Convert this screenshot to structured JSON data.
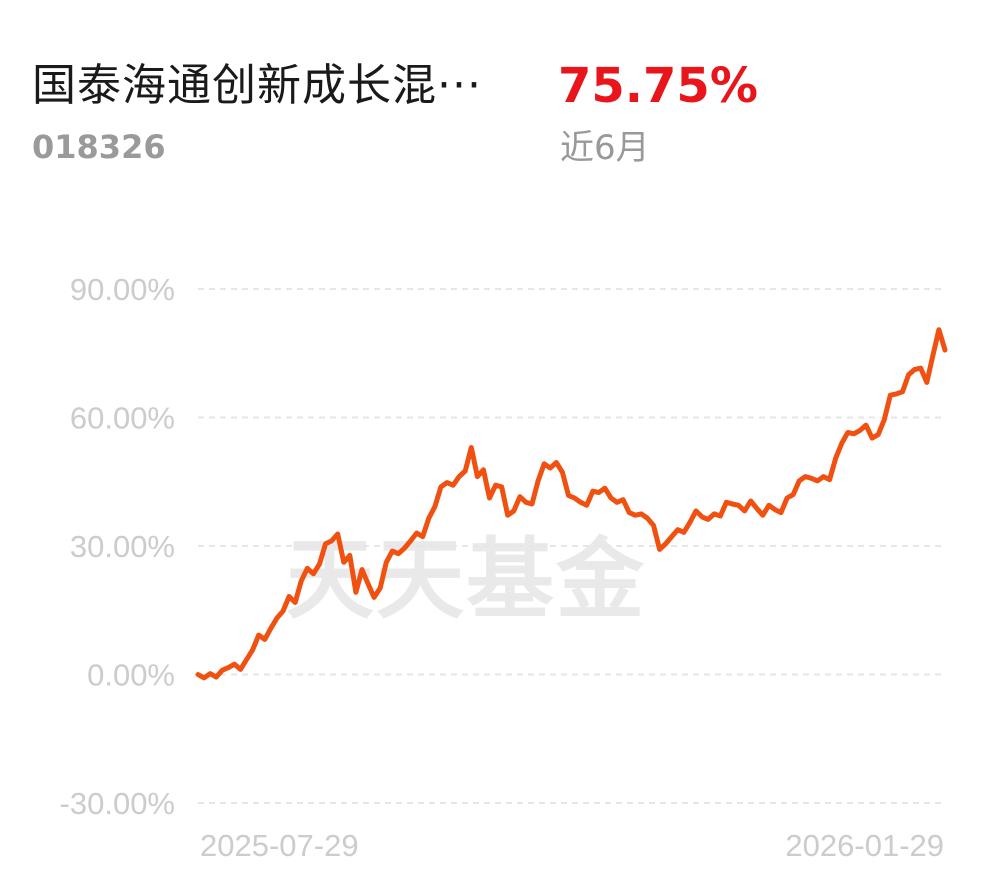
{
  "header": {
    "fund_name": "国泰海通创新成长混···",
    "fund_code": "018326",
    "return_value": "75.75%",
    "period_label": "近6月"
  },
  "watermark": "天天基金",
  "colors": {
    "line": "#f05010",
    "return": "#e8151b",
    "grid": "#e6e6e6",
    "tick": "#cccccc"
  },
  "chart_data": {
    "type": "line",
    "title": "",
    "xlabel": "",
    "ylabel": "",
    "ylim": [
      -30,
      90
    ],
    "yticks": [
      90,
      60,
      30,
      0,
      -30
    ],
    "ytick_labels": [
      "90.00%",
      "60.00%",
      "30.00%",
      "0.00%",
      "-30.00%"
    ],
    "xtick_labels": [
      "2025-07-29",
      "2026-01-29"
    ],
    "grid": true,
    "series": [
      {
        "values": [
          0,
          -0.8,
          0.2,
          -0.6,
          1.0,
          1.6,
          2.4,
          1.2,
          3.5,
          5.8,
          9.2,
          8.2,
          10.8,
          13.2,
          14.8,
          18.2,
          16.8,
          21.8,
          24.8,
          23.5,
          25.8,
          30.5,
          31.2,
          32.8,
          26.2,
          27.8,
          19.2,
          24.5,
          21.2,
          18.0,
          20.2,
          26.2,
          28.8,
          28.2,
          29.5,
          31.2,
          33.0,
          32.2,
          36.5,
          39.2,
          43.8,
          44.8,
          44.2,
          46.2,
          47.5,
          53.0,
          46.2,
          47.8,
          41.2,
          44.2,
          43.8,
          37.2,
          38.2,
          41.5,
          40.2,
          39.8,
          45.2,
          49.2,
          48.2,
          49.5,
          47.2,
          41.8,
          41.2,
          40.2,
          39.5,
          42.8,
          42.5,
          43.5,
          41.2,
          40.2,
          40.8,
          37.8,
          37.2,
          37.5,
          36.5,
          34.8,
          29.2,
          30.5,
          32.2,
          33.8,
          33.2,
          35.5,
          38.2,
          36.8,
          36.2,
          37.5,
          37.0,
          40.2,
          39.8,
          39.5,
          38.2,
          40.5,
          38.8,
          37.2,
          39.5,
          38.5,
          37.8,
          41.2,
          42.0,
          45.2,
          46.2,
          45.8,
          45.2,
          46.2,
          45.5,
          50.5,
          54.0,
          56.5,
          56.2,
          57.0,
          58.2,
          55.2,
          56.0,
          59.5,
          65.2,
          65.5,
          66.0,
          70.0,
          71.2,
          71.5,
          68.2,
          74.5,
          80.5,
          75.75
        ]
      }
    ]
  }
}
